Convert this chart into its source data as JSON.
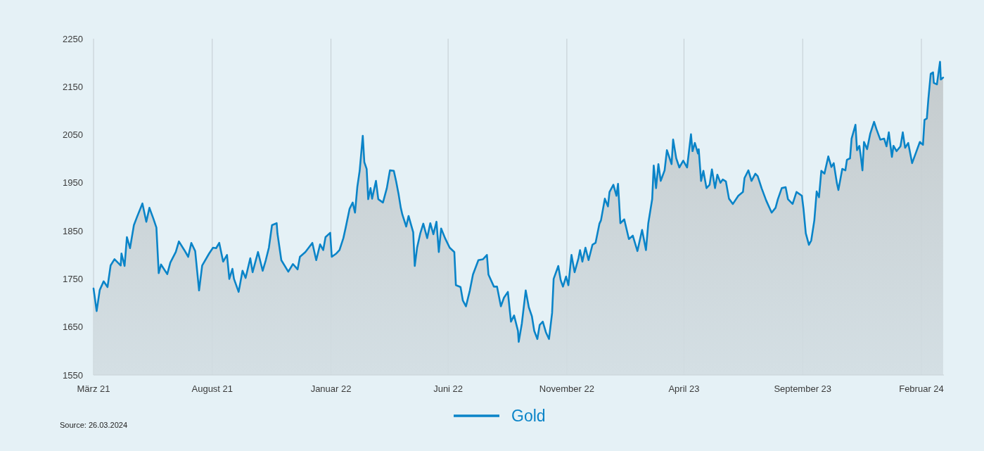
{
  "chart_data": {
    "type": "area",
    "xlim": [
      "2021-03-26",
      "2024-03-26"
    ],
    "xticks": [
      {
        "value": "2021-03-26",
        "label": "März 21"
      },
      {
        "value": "2021-08-26",
        "label": "August 21"
      },
      {
        "value": "2022-01-26",
        "label": "Januar 22"
      },
      {
        "value": "2022-06-26",
        "label": "Juni 22"
      },
      {
        "value": "2022-11-26",
        "label": "November 22"
      },
      {
        "value": "2023-04-26",
        "label": "April 23"
      },
      {
        "value": "2023-09-26",
        "label": "September 23"
      },
      {
        "value": "2024-02-26",
        "label": "Februar 24"
      }
    ],
    "ylim": [
      1550,
      2250
    ],
    "yticks": [
      1550,
      1650,
      1750,
      1850,
      1950,
      2050,
      2150,
      2250
    ],
    "grid": "x",
    "legend": "bottom",
    "annotations": [
      "Source: 26.03.2024"
    ],
    "series": [
      {
        "name": "Gold",
        "color": "#0a84c8",
        "x": [
          "2021-03-26",
          "2021-03-30",
          "2021-04-03",
          "2021-04-08",
          "2021-04-13",
          "2021-04-17",
          "2021-04-22",
          "2021-04-30",
          "2021-05-01",
          "2021-05-05",
          "2021-05-08",
          "2021-05-12",
          "2021-05-17",
          "2021-05-21",
          "2021-05-28",
          "2021-06-02",
          "2021-06-06",
          "2021-06-11",
          "2021-06-15",
          "2021-06-18",
          "2021-06-21",
          "2021-06-29",
          "2021-07-03",
          "2021-07-10",
          "2021-07-14",
          "2021-07-21",
          "2021-07-26",
          "2021-07-30",
          "2021-08-04",
          "2021-08-09",
          "2021-08-13",
          "2021-08-22",
          "2021-08-27",
          "2021-08-31",
          "2021-09-04",
          "2021-09-09",
          "2021-09-14",
          "2021-09-17",
          "2021-09-21",
          "2021-09-23",
          "2021-09-29",
          "2021-10-04",
          "2021-10-08",
          "2021-10-14",
          "2021-10-17",
          "2021-10-24",
          "2021-10-30",
          "2021-11-03",
          "2021-11-07",
          "2021-11-11",
          "2021-11-17",
          "2021-11-18",
          "2021-11-23",
          "2021-12-02",
          "2021-12-08",
          "2021-12-14",
          "2021-12-17",
          "2021-12-24",
          "2022-01-02",
          "2022-01-07",
          "2022-01-12",
          "2022-01-16",
          "2022-01-19",
          "2022-01-25",
          "2022-01-27",
          "2022-02-02",
          "2022-02-06",
          "2022-02-11",
          "2022-02-14",
          "2022-02-19",
          "2022-02-23",
          "2022-02-26",
          "2022-03-01",
          "2022-03-04",
          "2022-03-08",
          "2022-03-10",
          "2022-03-13",
          "2022-03-15",
          "2022-03-18",
          "2022-03-20",
          "2022-03-25",
          "2022-03-28",
          "2022-04-03",
          "2022-04-08",
          "2022-04-12",
          "2022-04-17",
          "2022-04-20",
          "2022-04-23",
          "2022-04-26",
          "2022-04-28",
          "2022-05-03",
          "2022-05-06",
          "2022-05-12",
          "2022-05-14",
          "2022-05-17",
          "2022-05-21",
          "2022-05-25",
          "2022-05-30",
          "2022-06-03",
          "2022-06-07",
          "2022-06-11",
          "2022-06-14",
          "2022-06-17",
          "2022-06-22",
          "2022-06-28",
          "2022-07-04",
          "2022-07-06",
          "2022-07-12",
          "2022-07-15",
          "2022-07-19",
          "2022-07-24",
          "2022-07-28",
          "2022-08-04",
          "2022-08-10",
          "2022-08-15",
          "2022-08-17",
          "2022-08-24",
          "2022-08-28",
          "2022-09-02",
          "2022-09-06",
          "2022-09-11",
          "2022-09-15",
          "2022-09-19",
          "2022-09-24",
          "2022-09-25",
          "2022-09-29",
          "2022-10-04",
          "2022-10-08",
          "2022-10-12",
          "2022-10-15",
          "2022-10-19",
          "2022-10-22",
          "2022-10-26",
          "2022-10-30",
          "2022-11-03",
          "2022-11-07",
          "2022-11-09",
          "2022-11-15",
          "2022-11-18",
          "2022-11-21",
          "2022-11-25",
          "2022-11-28",
          "2022-12-02",
          "2022-12-06",
          "2022-12-11",
          "2022-12-13",
          "2022-12-16",
          "2022-12-20",
          "2022-12-24",
          "2022-12-29",
          "2023-01-02",
          "2023-01-07",
          "2023-01-09",
          "2023-01-14",
          "2023-01-18",
          "2023-01-20",
          "2023-01-25",
          "2023-01-29",
          "2023-01-31",
          "2023-02-03",
          "2023-02-08",
          "2023-02-14",
          "2023-02-19",
          "2023-02-25",
          "2023-03-03",
          "2023-03-08",
          "2023-03-11",
          "2023-03-16",
          "2023-03-18",
          "2023-03-21",
          "2023-03-24",
          "2023-03-27",
          "2023-04-01",
          "2023-04-04",
          "2023-04-10",
          "2023-04-12",
          "2023-04-16",
          "2023-04-20",
          "2023-04-25",
          "2023-04-30",
          "2023-05-05",
          "2023-05-07",
          "2023-05-10",
          "2023-05-14",
          "2023-05-15",
          "2023-05-18",
          "2023-05-21",
          "2023-05-25",
          "2023-05-29",
          "2023-06-01",
          "2023-06-05",
          "2023-06-08",
          "2023-06-12",
          "2023-06-15",
          "2023-06-19",
          "2023-06-23",
          "2023-06-28",
          "2023-07-05",
          "2023-07-11",
          "2023-07-13",
          "2023-07-18",
          "2023-07-22",
          "2023-07-27",
          "2023-07-30",
          "2023-08-04",
          "2023-08-10",
          "2023-08-17",
          "2023-08-22",
          "2023-08-25",
          "2023-08-30",
          "2023-09-04",
          "2023-09-07",
          "2023-09-13",
          "2023-09-18",
          "2023-09-25",
          "2023-09-27",
          "2023-09-30",
          "2023-10-04",
          "2023-10-07",
          "2023-10-11",
          "2023-10-14",
          "2023-10-17",
          "2023-10-20",
          "2023-10-24",
          "2023-10-29",
          "2023-11-02",
          "2023-11-05",
          "2023-11-09",
          "2023-11-11",
          "2023-11-16",
          "2023-11-20",
          "2023-11-22",
          "2023-11-26",
          "2023-11-28",
          "2023-12-03",
          "2023-12-05",
          "2023-12-08",
          "2023-12-10",
          "2023-12-12",
          "2023-12-14",
          "2023-12-18",
          "2023-12-22",
          "2023-12-27",
          "2023-12-30",
          "2024-01-04",
          "2024-01-09",
          "2024-01-12",
          "2024-01-15",
          "2024-01-19",
          "2024-01-21",
          "2024-01-25",
          "2024-01-30",
          "2024-02-02",
          "2024-02-05",
          "2024-02-09",
          "2024-02-14",
          "2024-02-19",
          "2024-02-24",
          "2024-02-28",
          "2024-03-01",
          "2024-03-04",
          "2024-03-06",
          "2024-03-09",
          "2024-03-12",
          "2024-03-13",
          "2024-03-17",
          "2024-03-21",
          "2024-03-22",
          "2024-03-25"
        ],
        "values": [
          1730,
          1683,
          1727,
          1745,
          1733,
          1778,
          1791,
          1778,
          1803,
          1777,
          1837,
          1814,
          1862,
          1879,
          1907,
          1869,
          1898,
          1876,
          1857,
          1762,
          1780,
          1760,
          1784,
          1806,
          1828,
          1810,
          1796,
          1825,
          1808,
          1726,
          1778,
          1803,
          1815,
          1814,
          1825,
          1786,
          1800,
          1750,
          1771,
          1750,
          1723,
          1767,
          1752,
          1793,
          1764,
          1806,
          1767,
          1789,
          1815,
          1862,
          1866,
          1845,
          1789,
          1765,
          1781,
          1770,
          1796,
          1806,
          1825,
          1789,
          1822,
          1810,
          1837,
          1846,
          1796,
          1803,
          1810,
          1835,
          1857,
          1896,
          1909,
          1888,
          1942,
          1975,
          2048,
          1993,
          1979,
          1916,
          1939,
          1917,
          1954,
          1916,
          1909,
          1939,
          1976,
          1975,
          1953,
          1928,
          1898,
          1884,
          1859,
          1881,
          1847,
          1777,
          1815,
          1844,
          1865,
          1835,
          1866,
          1843,
          1869,
          1806,
          1855,
          1835,
          1815,
          1806,
          1737,
          1733,
          1705,
          1693,
          1726,
          1759,
          1789,
          1791,
          1800,
          1759,
          1734,
          1734,
          1693,
          1711,
          1723,
          1661,
          1674,
          1642,
          1619,
          1657,
          1726,
          1691,
          1672,
          1642,
          1625,
          1654,
          1661,
          1639,
          1625,
          1679,
          1750,
          1777,
          1748,
          1734,
          1755,
          1737,
          1800,
          1764,
          1793,
          1810,
          1786,
          1815,
          1789,
          1821,
          1825,
          1865,
          1872,
          1917,
          1901,
          1931,
          1946,
          1923,
          1948,
          1866,
          1874,
          1833,
          1840,
          1808,
          1852,
          1810,
          1866,
          1916,
          1986,
          1939,
          1989,
          1954,
          1976,
          2018,
          1989,
          2040,
          2001,
          1982,
          1996,
          1982,
          2051,
          2016,
          2033,
          2011,
          2020,
          1954,
          1975,
          1939,
          1946,
          1978,
          1939,
          1967,
          1950,
          1957,
          1953,
          1917,
          1906,
          1923,
          1931,
          1960,
          1976,
          1954,
          1969,
          1964,
          1939,
          1913,
          1888,
          1898,
          1916,
          1939,
          1941,
          1916,
          1906,
          1931,
          1923,
          1896,
          1845,
          1821,
          1830,
          1872,
          1932,
          1920,
          1975,
          1969,
          2005,
          1983,
          1991,
          1950,
          1935,
          1979,
          1976,
          1998,
          2001,
          2042,
          2071,
          2018,
          2027,
          2004,
          1976,
          2035,
          2020,
          2052,
          2077,
          2062,
          2040,
          2042,
          2026,
          2055,
          2004,
          2027,
          2016,
          2026,
          2055,
          2023,
          2033,
          1991,
          2013,
          2035,
          2029,
          2081,
          2084,
          2125,
          2177,
          2180,
          2158,
          2155,
          2202,
          2165,
          2169
        ]
      }
    ]
  }
}
